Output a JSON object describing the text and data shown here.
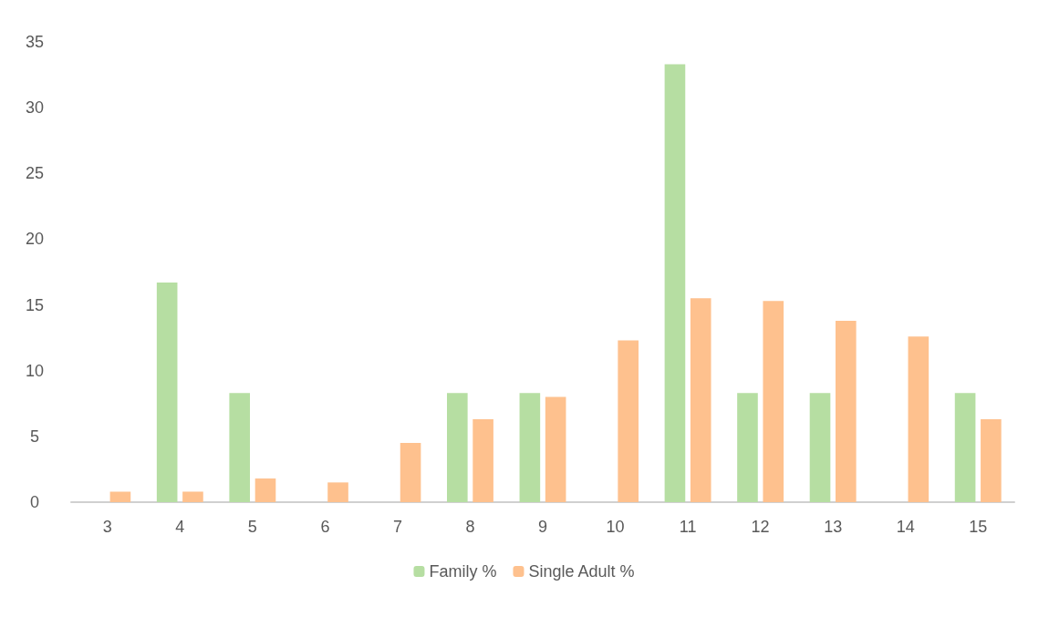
{
  "chart_data": {
    "type": "bar",
    "categories": [
      "3",
      "4",
      "5",
      "6",
      "7",
      "8",
      "9",
      "10",
      "11",
      "12",
      "13",
      "14",
      "15"
    ],
    "series": [
      {
        "name": "Family %",
        "color": "#b6dea2",
        "values": [
          0,
          16.7,
          8.3,
          0,
          0,
          8.3,
          8.3,
          0,
          33.3,
          8.3,
          8.3,
          0,
          8.3
        ]
      },
      {
        "name": "Single Adult %",
        "color": "#fec18e",
        "values": [
          0.8,
          0.8,
          1.8,
          1.5,
          4.5,
          6.3,
          8.0,
          12.3,
          15.5,
          15.3,
          13.8,
          12.6,
          6.3
        ]
      }
    ],
    "ylim": [
      0,
      35
    ],
    "yticks": [
      0,
      5,
      10,
      15,
      20,
      25,
      30,
      35
    ],
    "grid": false,
    "legend": "bottom"
  }
}
